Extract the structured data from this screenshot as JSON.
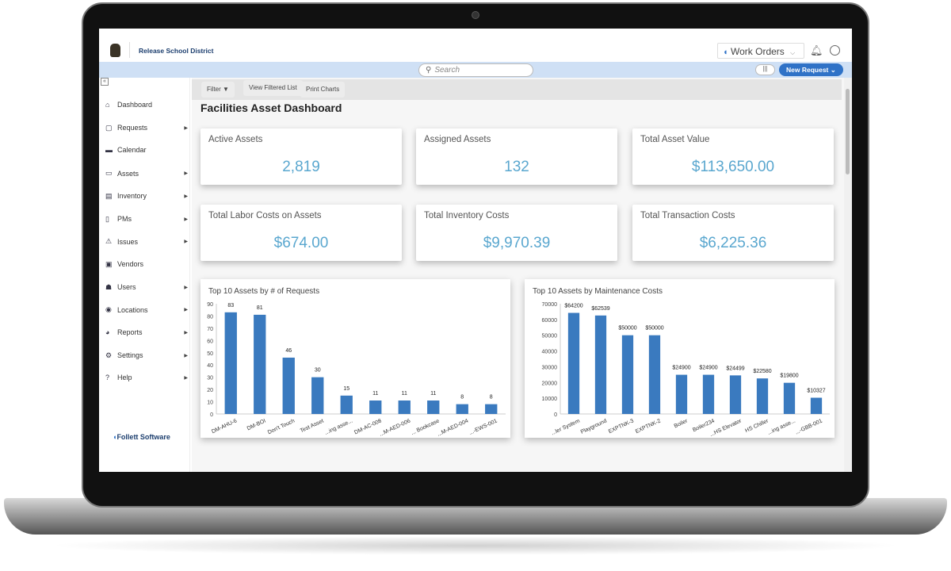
{
  "header": {
    "org_name": "Release School District",
    "app_switcher": "Work Orders",
    "new_request": "New Request",
    "search_placeholder": "Search"
  },
  "colors": {
    "accent": "#2f72c7",
    "bar": "#3a7abf",
    "value": "#5aa7cf",
    "bluebar": "#cfe0f5"
  },
  "toolbar": {
    "filter": "Filter",
    "view_filtered": "View Filtered List",
    "print_charts": "Print Charts"
  },
  "page_title": "Facilities Asset Dashboard",
  "sidebar": {
    "items": [
      {
        "label": "Dashboard",
        "icon": "home-icon",
        "sub": false
      },
      {
        "label": "Requests",
        "icon": "request-icon",
        "sub": true
      },
      {
        "label": "Calendar",
        "icon": "calendar-icon",
        "sub": false
      },
      {
        "label": "Assets",
        "icon": "asset-icon",
        "sub": true
      },
      {
        "label": "Inventory",
        "icon": "clipboard-icon",
        "sub": true
      },
      {
        "label": "PMs",
        "icon": "document-icon",
        "sub": true
      },
      {
        "label": "Issues",
        "icon": "warning-icon",
        "sub": true
      },
      {
        "label": "Vendors",
        "icon": "briefcase-icon",
        "sub": false
      },
      {
        "label": "Users",
        "icon": "users-icon",
        "sub": true
      },
      {
        "label": "Locations",
        "icon": "location-icon",
        "sub": true
      },
      {
        "label": "Reports",
        "icon": "chart-icon",
        "sub": true
      },
      {
        "label": "Settings",
        "icon": "gear-icon",
        "sub": true
      },
      {
        "label": "Help",
        "icon": "help-icon",
        "sub": true
      }
    ],
    "footer_logo": "Follett Software"
  },
  "cards": [
    {
      "title": "Active Assets",
      "value": "2,819"
    },
    {
      "title": "Assigned Assets",
      "value": "132"
    },
    {
      "title": "Total Asset Value",
      "value": "$113,650.00"
    },
    {
      "title": "Total Labor Costs on Assets",
      "value": "$674.00"
    },
    {
      "title": "Total Inventory Costs",
      "value": "$9,970.39"
    },
    {
      "title": "Total Transaction Costs",
      "value": "$6,225.36"
    }
  ],
  "chart_data": [
    {
      "type": "bar",
      "title": "Top 10 Assets by # of Requests",
      "ylim": [
        0,
        90
      ],
      "yticks": [
        0,
        10,
        20,
        30,
        40,
        50,
        60,
        70,
        80,
        90
      ],
      "categories": [
        "DM-AHU-6",
        "DM-BOI",
        "Don't Touch",
        "Test Asset",
        "...ing asse...",
        "DM-AC-008",
        "...M-AED-006",
        "... Bookcase",
        "...M-AED-004",
        "...-EWS-001"
      ],
      "values": [
        83,
        81,
        46,
        30,
        15,
        11,
        11,
        11,
        8,
        8
      ],
      "labels": [
        "83",
        "81",
        "46",
        "30",
        "15",
        "11",
        "11",
        "11",
        "8",
        "8"
      ]
    },
    {
      "type": "bar",
      "title": "Top 10 Assets by Maintenance Costs",
      "ylim": [
        0,
        70000
      ],
      "yticks": [
        0,
        10000,
        20000,
        30000,
        40000,
        50000,
        60000,
        70000
      ],
      "categories": [
        "...ler System",
        "Playground",
        "EXPTNK-3",
        "EXPTNK-2",
        "Boiler",
        "Boiler234",
        "...HS Elevator",
        "HS Chiller",
        "...ing asse...",
        "...-GBB-001"
      ],
      "values": [
        64200,
        62539,
        50000,
        50000,
        24900,
        24900,
        24499,
        22580,
        19800,
        10327
      ],
      "labels": [
        "$64200",
        "$62539",
        "$50000",
        "$50000",
        "$24900",
        "$24900",
        "$24499",
        "$22580",
        "$19800",
        "$10327"
      ]
    }
  ]
}
